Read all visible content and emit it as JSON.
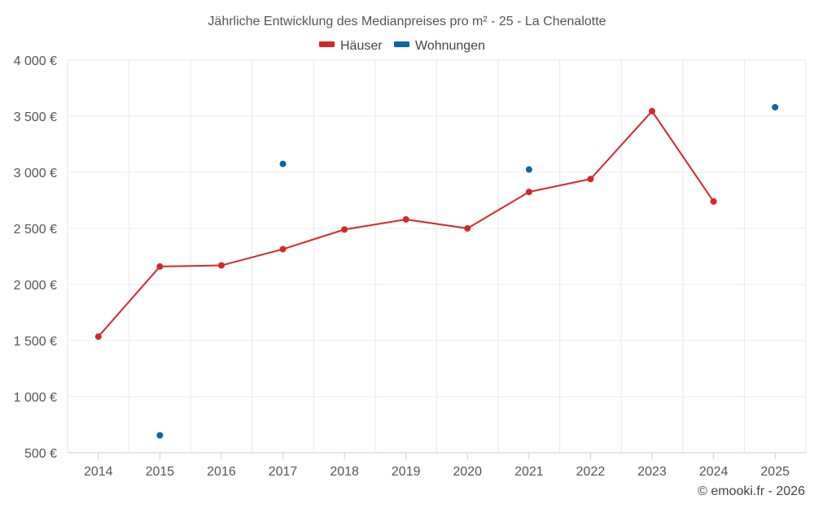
{
  "chart_data": {
    "type": "line",
    "title": "Jährliche Entwicklung des Medianpreises pro m² - 25 - La Chenalotte",
    "xlabel": "",
    "ylabel": "",
    "categories": [
      "2014",
      "2015",
      "2016",
      "2017",
      "2018",
      "2019",
      "2020",
      "2021",
      "2022",
      "2023",
      "2024",
      "2025"
    ],
    "ylim": [
      500,
      4000
    ],
    "y_ticks": [
      500,
      1000,
      1500,
      2000,
      2500,
      3000,
      3500,
      4000
    ],
    "y_tick_labels": [
      "500 €",
      "1 000 €",
      "1 500 €",
      "2 000 €",
      "2 500 €",
      "3 000 €",
      "3 500 €",
      "4 000 €"
    ],
    "grid": true,
    "legend_position": "top-center",
    "series": [
      {
        "name": "Häuser",
        "color": "#d62728",
        "line": true,
        "values": [
          1535,
          2160,
          2170,
          2315,
          2490,
          2580,
          2500,
          2825,
          2940,
          3545,
          2740,
          null
        ]
      },
      {
        "name": "Wohnungen",
        "color": "#0868a8",
        "line": false,
        "values": [
          null,
          655,
          null,
          3075,
          null,
          null,
          null,
          3025,
          null,
          null,
          null,
          3580
        ]
      }
    ],
    "credit": "© emooki.fr - 2026"
  }
}
